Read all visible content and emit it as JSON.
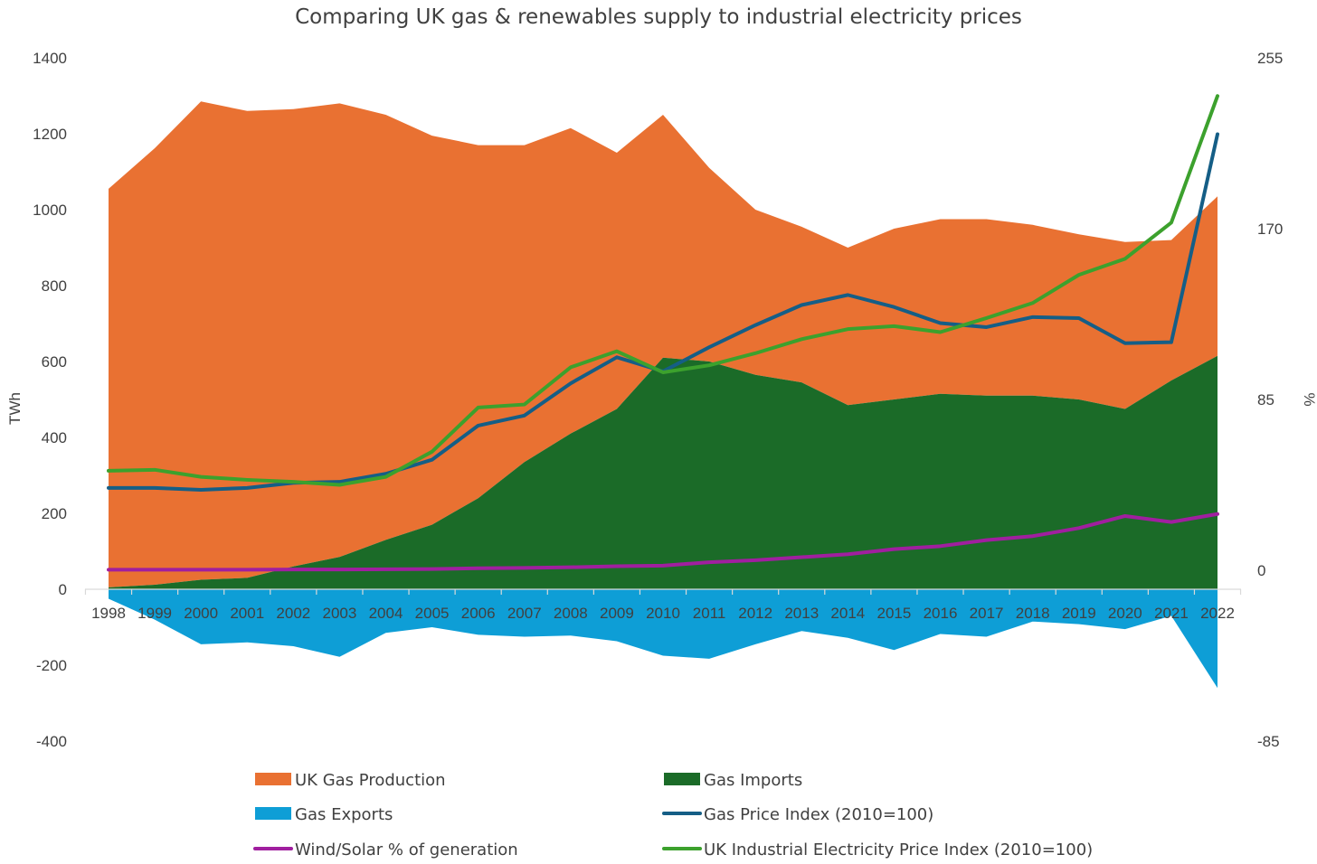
{
  "chart_data": {
    "type": "area",
    "title": "Comparing UK gas & renewables supply to industrial electricity prices",
    "y_left_label": "TWh",
    "y_right_label": "%",
    "x": [
      "1998",
      "1999",
      "2000",
      "2001",
      "2002",
      "2003",
      "2004",
      "2005",
      "2006",
      "2007",
      "2008",
      "2009",
      "2010",
      "2011",
      "2012",
      "2013",
      "2014",
      "2015",
      "2016",
      "2017",
      "2018",
      "2019",
      "2020",
      "2021",
      "2022"
    ],
    "y_left_ticks": [
      "1400",
      "1200",
      "1000",
      "800",
      "600",
      "400",
      "200",
      "0",
      "-200",
      "-400"
    ],
    "y_left_range": [
      -400,
      1400
    ],
    "y_right_ticks": [
      "255",
      "170",
      "85",
      "0",
      "-85"
    ],
    "y_right_range": [
      -85,
      255
    ],
    "grid": false,
    "legend_position": "bottom",
    "series": [
      {
        "name": "UK Gas Production",
        "kind": "stacked-area",
        "axis": "left",
        "color": "#E97132",
        "values": [
          1050,
          1150,
          1260,
          1230,
          1205,
          1195,
          1120,
          1025,
          930,
          835,
          805,
          675,
          640,
          510,
          435,
          410,
          415,
          450,
          460,
          465,
          450,
          435,
          440,
          370,
          420
        ]
      },
      {
        "name": "Gas Imports",
        "kind": "stacked-area",
        "axis": "left",
        "color": "#1B6B28",
        "values": [
          5,
          12,
          25,
          30,
          60,
          85,
          130,
          170,
          240,
          335,
          410,
          475,
          610,
          600,
          565,
          545,
          485,
          500,
          515,
          510,
          510,
          500,
          475,
          550,
          615
        ]
      },
      {
        "name": "Gas Exports",
        "kind": "area",
        "axis": "left",
        "color": "#0E9ED6",
        "values": [
          -25,
          -80,
          -145,
          -140,
          -150,
          -178,
          -115,
          -100,
          -120,
          -125,
          -122,
          -137,
          -175,
          -183,
          -145,
          -110,
          -128,
          -160,
          -118,
          -125,
          -85,
          -92,
          -105,
          -70,
          -260
        ]
      },
      {
        "name": "Gas Price Index (2010=100)",
        "kind": "line",
        "axis": "right",
        "color": "#155E86",
        "values": [
          41,
          41,
          40,
          41,
          43.5,
          44,
          48,
          55,
          72,
          77,
          93,
          106,
          99,
          111,
          122,
          132,
          137,
          131,
          123,
          121,
          126,
          125.5,
          113,
          113.5,
          217
        ]
      },
      {
        "name": "Wind/Solar % of generation",
        "kind": "line",
        "axis": "right",
        "color": "#A01F9F",
        "values": [
          0.3,
          0.3,
          0.3,
          0.3,
          0.4,
          0.4,
          0.5,
          0.6,
          1,
          1.2,
          1.5,
          2,
          2.3,
          4,
          5,
          6.5,
          8,
          10.5,
          12,
          15,
          17,
          21,
          27,
          24,
          28
        ]
      },
      {
        "name": "UK Industrial Electricity Price Index (2010=100)",
        "kind": "line",
        "axis": "right",
        "color": "#3CA12D",
        "values": [
          49.5,
          50,
          46.5,
          45,
          44,
          42.5,
          46.5,
          59,
          81,
          82.5,
          101,
          109,
          98.5,
          102,
          108,
          115,
          120,
          121.5,
          118.5,
          125.5,
          133,
          147,
          155,
          173,
          236
        ]
      }
    ]
  }
}
